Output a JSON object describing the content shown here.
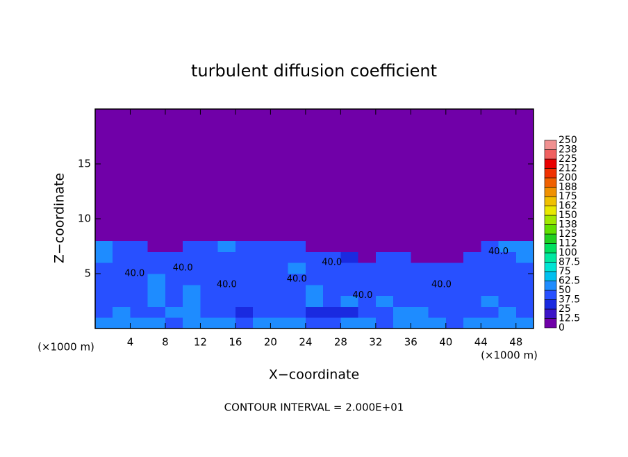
{
  "chart_data": {
    "type": "heatmap",
    "title": "turbulent diffusion coefficient",
    "x_label": "X−coordinate",
    "y_label": "Z−coordinate",
    "x_unit": "(×1000 m)",
    "y_unit": "(×1000 m)",
    "footer": "CONTOUR INTERVAL = 2.000E+01",
    "xlim": [
      0,
      50
    ],
    "ylim": [
      0,
      20
    ],
    "xticks": [
      4,
      8,
      12,
      16,
      20,
      24,
      28,
      32,
      36,
      40,
      44,
      48
    ],
    "yticks": [
      5,
      10,
      15
    ],
    "x_bins": [
      0,
      2,
      4,
      6,
      8,
      10,
      12,
      14,
      16,
      18,
      20,
      22,
      24,
      26,
      28,
      30,
      32,
      34,
      36,
      38,
      40,
      42,
      44,
      46,
      48,
      50
    ],
    "z_bins": [
      0,
      1,
      2,
      3,
      4,
      5,
      6,
      7,
      8,
      20
    ],
    "values": [
      [
        60,
        55,
        50,
        60,
        45,
        55,
        62,
        50,
        45,
        55,
        50,
        60,
        45,
        40,
        50,
        55,
        45,
        55,
        60,
        50,
        45,
        55,
        50,
        60,
        55
      ],
      [
        45,
        50,
        40,
        45,
        50,
        60,
        45,
        40,
        35,
        40,
        45,
        40,
        35,
        30,
        35,
        40,
        45,
        60,
        50,
        40,
        45,
        40,
        45,
        50,
        45
      ],
      [
        40,
        45,
        40,
        60,
        45,
        55,
        40,
        40,
        40,
        45,
        40,
        45,
        50,
        45,
        60,
        40,
        60,
        45,
        40,
        40,
        45,
        40,
        50,
        45,
        40
      ],
      [
        40,
        40,
        45,
        55,
        40,
        50,
        40,
        40,
        40,
        40,
        40,
        45,
        55,
        45,
        40,
        40,
        45,
        40,
        40,
        40,
        40,
        45,
        40,
        40,
        40
      ],
      [
        40,
        45,
        40,
        50,
        40,
        45,
        40,
        40,
        40,
        40,
        40,
        40,
        45,
        40,
        40,
        40,
        40,
        40,
        40,
        40,
        45,
        40,
        40,
        45,
        40
      ],
      [
        45,
        40,
        45,
        40,
        45,
        40,
        40,
        40,
        45,
        40,
        40,
        50,
        40,
        40,
        40,
        45,
        40,
        40,
        40,
        40,
        40,
        40,
        40,
        40,
        45
      ],
      [
        50,
        40,
        40,
        45,
        40,
        40,
        40,
        45,
        40,
        45,
        40,
        40,
        45,
        40,
        30,
        5,
        40,
        40,
        5,
        5,
        5,
        40,
        40,
        40,
        50
      ],
      [
        55,
        45,
        40,
        5,
        5,
        45,
        40,
        50,
        40,
        45,
        40,
        45,
        5,
        5,
        5,
        5,
        5,
        5,
        5,
        5,
        5,
        5,
        45,
        50,
        55
      ],
      [
        0,
        0,
        0,
        0,
        0,
        0,
        0,
        0,
        0,
        0,
        0,
        0,
        0,
        0,
        0,
        0,
        0,
        0,
        0,
        0,
        0,
        0,
        0,
        0,
        0
      ]
    ],
    "levels": [
      0,
      12.5,
      25,
      37.5,
      50,
      62.5,
      75,
      87.5,
      100,
      {
        "value": 112.5,
        "label": "112"
      },
      125,
      {
        "value": 137.5,
        "label": "138"
      },
      150,
      {
        "value": 162.5,
        "label": "162"
      },
      175,
      {
        "value": 187.5,
        "label": "188"
      },
      200,
      {
        "value": 212.5,
        "label": "212"
      },
      225,
      {
        "value": 237.5,
        "label": "238"
      },
      250
    ],
    "colors": [
      "#7000a8",
      "#3c14c8",
      "#1a2ae0",
      "#2850ff",
      "#1e8cff",
      "#00c0f0",
      "#00e4d4",
      "#00e8a0",
      "#00e060",
      "#20d020",
      "#60e000",
      "#a0e800",
      "#e8e800",
      "#f0c000",
      "#f09000",
      "#f06000",
      "#f03000",
      "#e80000",
      "#f06060",
      "#f09090"
    ],
    "annotations": [
      {
        "text": "40.0",
        "x": 4.5,
        "z": 5
      },
      {
        "text": "40.0",
        "x": 10,
        "z": 5.5
      },
      {
        "text": "40.0",
        "x": 15,
        "z": 4
      },
      {
        "text": "40.0",
        "x": 23,
        "z": 4.5
      },
      {
        "text": "40.0",
        "x": 27,
        "z": 6
      },
      {
        "text": "40.0",
        "x": 30.5,
        "z": 3
      },
      {
        "text": "40.0",
        "x": 39.5,
        "z": 4
      },
      {
        "text": "40.0",
        "x": 46,
        "z": 7
      }
    ]
  }
}
